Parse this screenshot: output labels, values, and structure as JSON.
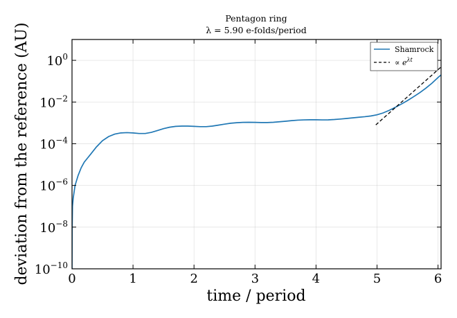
{
  "chart_data": {
    "type": "line",
    "title": "Pentagon ring",
    "subtitle": "λ = 5.90 e-folds/period",
    "xlabel": "time / period",
    "ylabel": "deviation from the reference (AU)",
    "xlim": [
      0,
      6.05
    ],
    "ylim": [
      1e-10,
      10
    ],
    "yscale": "log",
    "grid": true,
    "legend_position": "top-right",
    "x_ticks": [
      {
        "value": 0,
        "label": "0"
      },
      {
        "value": 1,
        "label": "1"
      },
      {
        "value": 2,
        "label": "2"
      },
      {
        "value": 3,
        "label": "3"
      },
      {
        "value": 4,
        "label": "4"
      },
      {
        "value": 5,
        "label": "5"
      },
      {
        "value": 6,
        "label": "6"
      }
    ],
    "y_ticks": [
      {
        "value": 1e-10,
        "base": "10",
        "exp": "−10"
      },
      {
        "value": 1e-08,
        "base": "10",
        "exp": "−8"
      },
      {
        "value": 1e-06,
        "base": "10",
        "exp": "−6"
      },
      {
        "value": 0.0001,
        "base": "10",
        "exp": "−4"
      },
      {
        "value": 0.01,
        "base": "10",
        "exp": "−2"
      },
      {
        "value": 1,
        "base": "10",
        "exp": "0"
      }
    ],
    "series": [
      {
        "name": "Shamrock",
        "color": "#1f77b4",
        "style": "solid",
        "points": [
          [
            0.0,
            1e-10
          ],
          [
            0.003,
            1e-08
          ],
          [
            0.008,
            1e-07
          ],
          [
            0.02,
            2.5e-07
          ],
          [
            0.05,
            1e-06
          ],
          [
            0.1,
            3e-06
          ],
          [
            0.15,
            7e-06
          ],
          [
            0.2,
            1.3e-05
          ],
          [
            0.3,
            3e-05
          ],
          [
            0.4,
            7e-05
          ],
          [
            0.5,
            0.00014
          ],
          [
            0.6,
            0.00022
          ],
          [
            0.7,
            0.00029
          ],
          [
            0.8,
            0.00033
          ],
          [
            0.9,
            0.00034
          ],
          [
            1.0,
            0.00033
          ],
          [
            1.1,
            0.00031
          ],
          [
            1.2,
            0.00031
          ],
          [
            1.3,
            0.00035
          ],
          [
            1.4,
            0.00043
          ],
          [
            1.5,
            0.00053
          ],
          [
            1.6,
            0.00062
          ],
          [
            1.7,
            0.00068
          ],
          [
            1.8,
            0.0007
          ],
          [
            1.9,
            0.0007
          ],
          [
            2.0,
            0.00068
          ],
          [
            2.1,
            0.00066
          ],
          [
            2.2,
            0.00066
          ],
          [
            2.3,
            0.0007
          ],
          [
            2.4,
            0.00078
          ],
          [
            2.5,
            0.00087
          ],
          [
            2.6,
            0.00096
          ],
          [
            2.7,
            0.00102
          ],
          [
            2.8,
            0.00106
          ],
          [
            2.9,
            0.00107
          ],
          [
            3.0,
            0.00106
          ],
          [
            3.1,
            0.00104
          ],
          [
            3.2,
            0.00104
          ],
          [
            3.3,
            0.00107
          ],
          [
            3.4,
            0.00113
          ],
          [
            3.5,
            0.0012
          ],
          [
            3.6,
            0.00128
          ],
          [
            3.7,
            0.00135
          ],
          [
            3.8,
            0.00139
          ],
          [
            3.9,
            0.00141
          ],
          [
            4.0,
            0.00141
          ],
          [
            4.1,
            0.00139
          ],
          [
            4.2,
            0.0014
          ],
          [
            4.3,
            0.00145
          ],
          [
            4.4,
            0.00153
          ],
          [
            4.5,
            0.00163
          ],
          [
            4.6,
            0.00174
          ],
          [
            4.7,
            0.00186
          ],
          [
            4.8,
            0.00198
          ],
          [
            4.9,
            0.00215
          ],
          [
            5.0,
            0.00245
          ],
          [
            5.1,
            0.003
          ],
          [
            5.2,
            0.004
          ],
          [
            5.3,
            0.0056
          ],
          [
            5.4,
            0.008
          ],
          [
            5.5,
            0.0118
          ],
          [
            5.6,
            0.018
          ],
          [
            5.7,
            0.028
          ],
          [
            5.8,
            0.046
          ],
          [
            5.9,
            0.08
          ],
          [
            6.0,
            0.15
          ],
          [
            6.05,
            0.2
          ]
        ]
      },
      {
        "name": "∝ e^{λt}",
        "color": "#000000",
        "style": "dashed",
        "points": [
          [
            4.98,
            0.0008
          ],
          [
            6.05,
            0.48
          ]
        ]
      }
    ]
  }
}
